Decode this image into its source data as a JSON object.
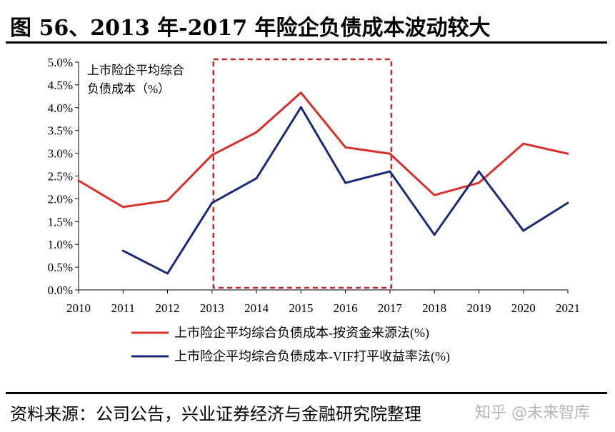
{
  "title": "图 56、2013 年-2017 年险企负债成本波动较大",
  "source": "资料来源：公司公告，兴业证券经济与金融研究院整理",
  "watermark": "知乎 @未来智库",
  "chart_data": {
    "type": "line",
    "annotation": "上市险企平均综合负债成本（%）",
    "annotation_lines": [
      "上市险企平均综合",
      "负债成本（%）"
    ],
    "highlight_range": [
      2013,
      2017
    ],
    "x": [
      2010,
      2011,
      2012,
      2013,
      2014,
      2015,
      2016,
      2017,
      2018,
      2019,
      2020,
      2021
    ],
    "xticks": [
      "2010",
      "2011",
      "2012",
      "2013",
      "2014",
      "2015",
      "2016",
      "2017",
      "2018",
      "2019",
      "2020",
      "2021"
    ],
    "ylim": [
      0,
      5
    ],
    "yticks": [
      "0.0%",
      "0.5%",
      "1.0%",
      "1.5%",
      "2.0%",
      "2.5%",
      "3.0%",
      "3.5%",
      "4.0%",
      "4.5%",
      "5.0%"
    ],
    "grid": false,
    "legend": "bottom",
    "series": [
      {
        "name": "上市险企平均综合负债成本-按资金来源法(%)",
        "color": "#d9302c",
        "values": [
          2.4,
          1.82,
          1.96,
          2.96,
          3.46,
          4.33,
          3.13,
          2.99,
          2.08,
          2.35,
          3.21,
          2.99
        ]
      },
      {
        "name": "上市险企平均综合负债成本-VIF打平收益率法(%)",
        "color": "#1b2a78",
        "values": [
          null,
          0.86,
          0.36,
          1.91,
          2.45,
          4.01,
          2.35,
          2.6,
          1.21,
          2.6,
          1.3,
          1.91
        ]
      }
    ]
  }
}
